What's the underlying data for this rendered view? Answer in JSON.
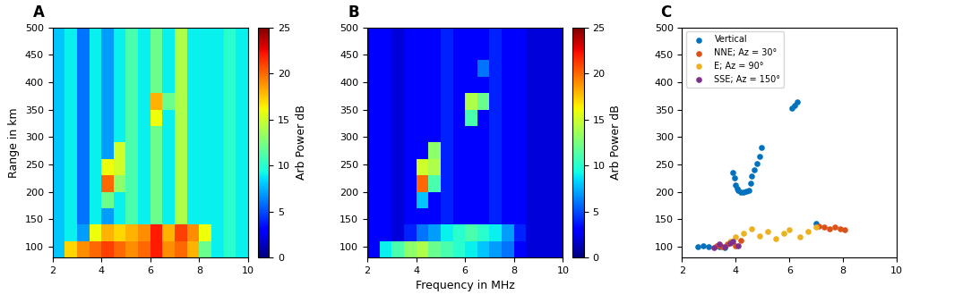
{
  "chart_data": [
    {
      "type": "heatmap",
      "title": "A",
      "ylabel": "Range in km",
      "x_edges": [
        2,
        2.5,
        3,
        3.5,
        4,
        4.5,
        5,
        5.5,
        6,
        6.5,
        7,
        7.5,
        8,
        8.5,
        9,
        9.5,
        10
      ],
      "y_edges": [
        80,
        110,
        140,
        170,
        200,
        230,
        260,
        290,
        320,
        350,
        380,
        410,
        440,
        470,
        500
      ],
      "cells": [
        [
          8,
          17,
          19,
          20,
          21,
          20,
          19,
          20,
          22,
          19,
          20,
          18,
          12,
          9,
          10,
          9
        ],
        [
          8,
          9,
          7,
          16,
          18,
          17,
          18,
          19,
          22,
          18,
          21,
          19,
          16,
          9,
          10,
          9
        ],
        [
          8,
          9,
          6,
          9,
          7,
          9,
          11,
          9,
          12,
          9,
          14,
          9,
          9,
          9,
          10,
          9
        ],
        [
          8,
          9,
          6,
          9,
          12,
          9,
          11,
          9,
          12,
          9,
          14,
          9,
          9,
          9,
          10,
          9
        ],
        [
          8,
          9,
          6,
          9,
          20,
          13,
          11,
          9,
          12,
          9,
          14,
          9,
          9,
          9,
          10,
          9
        ],
        [
          8,
          9,
          6,
          9,
          16,
          15,
          11,
          9,
          12,
          9,
          14,
          9,
          9,
          9,
          10,
          9
        ],
        [
          8,
          9,
          6,
          9,
          7,
          15,
          11,
          9,
          12,
          9,
          14,
          9,
          9,
          9,
          10,
          9
        ],
        [
          8,
          9,
          6,
          9,
          7,
          9,
          11,
          9,
          12,
          9,
          14,
          9,
          9,
          9,
          10,
          9
        ],
        [
          8,
          9,
          6,
          9,
          7,
          9,
          11,
          9,
          16,
          9,
          14,
          9,
          9,
          9,
          10,
          9
        ],
        [
          8,
          9,
          6,
          9,
          7,
          9,
          11,
          9,
          18,
          12,
          14,
          9,
          9,
          9,
          10,
          9
        ],
        [
          8,
          9,
          6,
          9,
          7,
          9,
          11,
          9,
          12,
          9,
          14,
          9,
          9,
          9,
          10,
          9
        ],
        [
          8,
          9,
          6,
          9,
          7,
          9,
          11,
          9,
          12,
          9,
          14,
          9,
          9,
          9,
          10,
          9
        ],
        [
          8,
          9,
          6,
          9,
          7,
          9,
          11,
          9,
          12,
          9,
          14,
          9,
          9,
          9,
          10,
          9
        ],
        [
          8,
          9,
          6,
          9,
          7,
          9,
          11,
          9,
          12,
          9,
          14,
          9,
          9,
          9,
          10,
          9
        ]
      ],
      "colorbar_range": [
        0,
        25
      ],
      "colorbar_ticks": [
        0,
        5,
        10,
        15,
        20,
        25
      ],
      "colorbar_label": "Arb Power dB",
      "xlim": [
        2,
        10
      ],
      "ylim": [
        80,
        500
      ],
      "xticks": [
        2,
        4,
        6,
        8,
        10
      ],
      "yticks": [
        100,
        150,
        200,
        250,
        300,
        350,
        400,
        450,
        500
      ]
    },
    {
      "type": "heatmap",
      "title": "B",
      "xlabel": "Frequency in MHz",
      "x_edges": [
        2,
        2.5,
        3,
        3.5,
        4,
        4.5,
        5,
        5.5,
        6,
        6.5,
        7,
        7.5,
        8,
        8.5,
        9,
        9.5,
        10
      ],
      "y_edges": [
        80,
        110,
        140,
        170,
        200,
        230,
        260,
        290,
        320,
        350,
        380,
        410,
        440,
        470,
        500
      ],
      "cells": [
        [
          3,
          9,
          11,
          13,
          14,
          12,
          11,
          10,
          9,
          8,
          7,
          6,
          3,
          2,
          2,
          2
        ],
        [
          3,
          3,
          2,
          4,
          6,
          7,
          9,
          10,
          11,
          10,
          9,
          7,
          4,
          2,
          2,
          2
        ],
        [
          3,
          3,
          2,
          3,
          3,
          3,
          4,
          3,
          3,
          3,
          4,
          3,
          3,
          2,
          2,
          2
        ],
        [
          3,
          3,
          2,
          3,
          8,
          3,
          4,
          3,
          3,
          3,
          4,
          3,
          3,
          2,
          2,
          2
        ],
        [
          3,
          3,
          2,
          3,
          20,
          11,
          4,
          3,
          3,
          3,
          4,
          3,
          3,
          2,
          2,
          2
        ],
        [
          3,
          3,
          2,
          3,
          15,
          14,
          4,
          3,
          3,
          3,
          4,
          3,
          3,
          2,
          2,
          2
        ],
        [
          3,
          3,
          2,
          3,
          3,
          13,
          4,
          3,
          3,
          3,
          4,
          3,
          3,
          2,
          2,
          2
        ],
        [
          3,
          3,
          2,
          3,
          3,
          3,
          4,
          3,
          3,
          3,
          4,
          3,
          3,
          2,
          2,
          2
        ],
        [
          3,
          3,
          2,
          3,
          3,
          3,
          4,
          3,
          11,
          3,
          4,
          3,
          3,
          2,
          2,
          2
        ],
        [
          3,
          3,
          2,
          3,
          3,
          3,
          4,
          3,
          14,
          12,
          4,
          3,
          3,
          2,
          2,
          2
        ],
        [
          3,
          3,
          2,
          3,
          3,
          3,
          4,
          3,
          3,
          3,
          4,
          3,
          3,
          2,
          2,
          2
        ],
        [
          3,
          3,
          2,
          3,
          3,
          3,
          4,
          3,
          3,
          6,
          4,
          3,
          3,
          2,
          2,
          2
        ],
        [
          3,
          3,
          2,
          3,
          3,
          3,
          4,
          3,
          3,
          3,
          4,
          3,
          3,
          2,
          2,
          2
        ],
        [
          3,
          3,
          2,
          3,
          3,
          3,
          4,
          3,
          3,
          3,
          4,
          3,
          3,
          2,
          2,
          2
        ]
      ],
      "colorbar_range": [
        0,
        25
      ],
      "colorbar_ticks": [
        0,
        5,
        10,
        15,
        20,
        25
      ],
      "colorbar_label": "Arb Power dB",
      "xlim": [
        2,
        10
      ],
      "ylim": [
        80,
        500
      ],
      "xticks": [
        2,
        4,
        6,
        8,
        10
      ],
      "yticks": [
        100,
        150,
        200,
        250,
        300,
        350,
        400,
        450,
        500
      ]
    },
    {
      "type": "scatter",
      "title": "C",
      "legend": "upper left",
      "xlim": [
        2,
        10
      ],
      "ylim": [
        80,
        500
      ],
      "xticks": [
        2,
        4,
        6,
        8,
        10
      ],
      "yticks": [
        100,
        150,
        200,
        250,
        300,
        350,
        400,
        450,
        500
      ],
      "series": [
        {
          "name": "Vertical",
          "color": "#0072bd",
          "marker": "o",
          "x": [
            2.6,
            2.8,
            3.0,
            3.4,
            3.6,
            3.9,
            3.95,
            4.0,
            4.05,
            4.1,
            4.2,
            4.3,
            4.4,
            4.5,
            4.55,
            4.6,
            4.7,
            4.8,
            4.9,
            4.95,
            6.1,
            6.2,
            6.3,
            7.0
          ],
          "y": [
            100,
            101,
            100,
            99,
            98,
            235,
            225,
            212,
            205,
            202,
            200,
            200,
            201,
            203,
            215,
            228,
            240,
            252,
            265,
            280,
            352,
            358,
            364,
            142
          ]
        },
        {
          "name": "NNE; Az = 30°",
          "color": "#d95319",
          "marker": "o",
          "x": [
            3.3,
            3.5,
            3.7,
            4.0,
            4.2,
            7.1,
            7.3,
            7.5,
            7.7,
            7.9,
            8.05
          ],
          "y": [
            102,
            100,
            104,
            101,
            112,
            138,
            135,
            133,
            136,
            132,
            130
          ]
        },
        {
          "name": "E; Az = 90°",
          "color": "#edb120",
          "marker": "o",
          "x": [
            3.8,
            4.0,
            4.3,
            4.6,
            4.9,
            5.2,
            5.5,
            5.8,
            6.0,
            6.4,
            6.7,
            7.0
          ],
          "y": [
            110,
            118,
            125,
            132,
            120,
            128,
            115,
            124,
            130,
            118,
            127,
            135
          ]
        },
        {
          "name": "SSE; Az = 150°",
          "color": "#7e2f8e",
          "marker": "o",
          "x": [
            3.2,
            3.4,
            3.6,
            3.8,
            3.9,
            4.1
          ],
          "y": [
            98,
            104,
            100,
            107,
            110,
            102
          ]
        }
      ]
    }
  ]
}
